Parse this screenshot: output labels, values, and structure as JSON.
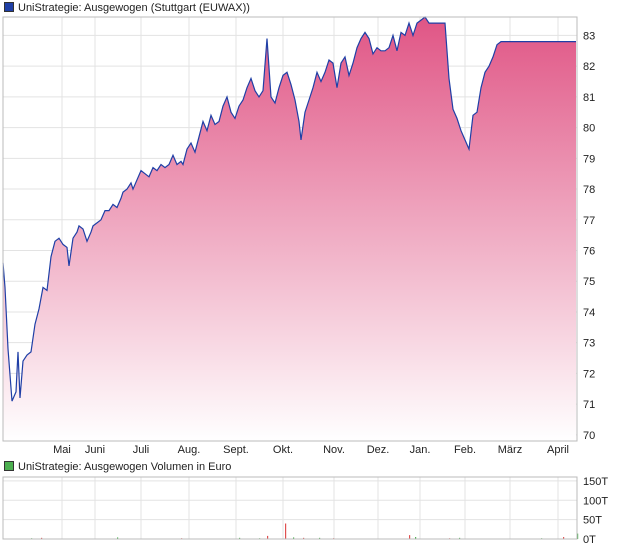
{
  "legend": {
    "price": {
      "label": "UniStrategie: Ausgewogen (Stuttgart (EUWAX))",
      "color": "#1f3fa6"
    },
    "volume": {
      "label": "UniStrategie: Ausgewogen Volumen in Euro",
      "color": "#4caf50"
    }
  },
  "chart_data": [
    {
      "type": "area",
      "title": "UniStrategie: Ausgewogen (Stuttgart (EUWAX))",
      "xlabel": "",
      "ylabel": "",
      "x_ticks": [
        "Mai",
        "Juni",
        "Juli",
        "Aug.",
        "Sept.",
        "Okt.",
        "Nov.",
        "Dez.",
        "Jan.",
        "Feb.",
        "März",
        "April"
      ],
      "y_ticks": [
        70,
        71,
        72,
        73,
        74,
        75,
        76,
        77,
        78,
        79,
        80,
        81,
        82,
        83
      ],
      "ylim": [
        69.8,
        83.6
      ],
      "grid": true,
      "line_color": "#1f3fa6",
      "fill_top_color": "#e05585",
      "fill_bottom_color": "#ffffff",
      "series": [
        {
          "x": [
            0,
            2,
            5,
            9,
            13,
            15,
            17,
            20,
            24,
            28,
            32,
            36,
            40,
            44,
            48,
            52,
            56,
            60,
            64,
            66,
            70,
            74,
            76,
            80,
            84,
            88,
            90,
            94,
            98,
            102,
            106,
            110,
            114,
            118,
            120,
            124,
            128,
            130,
            134,
            138,
            142,
            146,
            150,
            154,
            158,
            162,
            166,
            170,
            174,
            178,
            180,
            184,
            188,
            192,
            196,
            200,
            204,
            208,
            212,
            216,
            220,
            224,
            228,
            232,
            236,
            240,
            244,
            248,
            252,
            256,
            260,
            264,
            268,
            272,
            276,
            280,
            284,
            288,
            292,
            296,
            298,
            302,
            306,
            310,
            314,
            318,
            322,
            326,
            330,
            334,
            338,
            342,
            346,
            350,
            354,
            358,
            362,
            366,
            370,
            374,
            378,
            382,
            386,
            390,
            394,
            398,
            402,
            406,
            410,
            414,
            418,
            422,
            426,
            430,
            434,
            438,
            442,
            446,
            450,
            454,
            458,
            462,
            466,
            470,
            474,
            478,
            482,
            486,
            490,
            494,
            498,
            502,
            506,
            510,
            514,
            518,
            522,
            526,
            530,
            534,
            538,
            542,
            546,
            550,
            554,
            558,
            562,
            566,
            570,
            573
          ],
          "values": [
            75.6,
            74.8,
            72.8,
            71.1,
            71.4,
            72.7,
            71.2,
            72.4,
            72.6,
            72.7,
            73.6,
            74.1,
            74.8,
            74.7,
            75.8,
            76.3,
            76.4,
            76.2,
            76.1,
            75.5,
            76.4,
            76.6,
            76.8,
            76.7,
            76.3,
            76.6,
            76.8,
            76.9,
            77.0,
            77.3,
            77.3,
            77.5,
            77.4,
            77.7,
            77.9,
            78.0,
            78.2,
            78.0,
            78.3,
            78.6,
            78.5,
            78.4,
            78.7,
            78.6,
            78.8,
            78.7,
            78.8,
            79.1,
            78.8,
            78.9,
            78.8,
            79.3,
            79.5,
            79.2,
            79.7,
            80.2,
            79.9,
            80.4,
            80.1,
            80.2,
            80.7,
            81.0,
            80.5,
            80.3,
            80.7,
            80.9,
            81.3,
            81.6,
            81.2,
            81.0,
            81.2,
            82.9,
            81.0,
            80.8,
            81.3,
            81.7,
            81.8,
            81.4,
            80.9,
            80.2,
            79.6,
            80.5,
            80.9,
            81.3,
            81.8,
            81.5,
            81.8,
            82.2,
            82.1,
            81.3,
            82.1,
            82.3,
            81.7,
            82.1,
            82.6,
            82.9,
            83.1,
            82.9,
            82.4,
            82.6,
            82.5,
            82.5,
            82.6,
            83.0,
            82.5,
            83.1,
            83.0,
            83.4,
            83.0,
            83.4,
            83.5,
            83.6,
            83.4,
            83.4,
            83.4,
            83.4,
            83.4,
            81.6,
            80.6,
            80.3,
            79.9,
            79.6,
            79.3,
            80.4,
            80.5,
            81.3,
            81.8,
            82.0,
            82.3,
            82.7,
            82.8,
            82.8,
            82.8,
            82.8,
            82.8,
            82.8,
            82.8,
            82.8,
            82.8,
            82.8,
            82.8,
            82.8,
            82.8,
            82.8,
            82.8,
            82.8,
            82.8,
            82.8,
            82.8,
            82.8
          ]
        }
      ]
    },
    {
      "type": "bar",
      "title": "UniStrategie: Ausgewogen Volumen in Euro",
      "y_ticks": [
        "0T",
        "50T",
        "100T",
        "150T"
      ],
      "ylim": [
        0,
        160
      ],
      "grid": true,
      "series": [
        {
          "x": [
            28,
            38,
            114,
            178,
            236,
            256,
            264,
            282,
            290,
            300,
            316,
            330,
            406,
            412,
            446,
            456,
            538,
            560,
            574
          ],
          "values": [
            2,
            3,
            4,
            2,
            3,
            2,
            8,
            40,
            4,
            3,
            3,
            2,
            10,
            5,
            2,
            3,
            2,
            5,
            14
          ],
          "colors": [
            "#4caf50",
            "#e05050",
            "#4caf50",
            "#e05050",
            "#4caf50",
            "#4caf50",
            "#e05050",
            "#e05050",
            "#4caf50",
            "#e05050",
            "#4caf50",
            "#e05050",
            "#e05050",
            "#4caf50",
            "#e05050",
            "#4caf50",
            "#4caf50",
            "#e05050",
            "#4caf50"
          ]
        }
      ]
    }
  ]
}
